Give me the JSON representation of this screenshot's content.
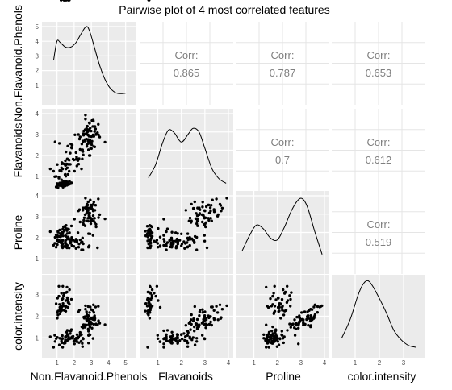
{
  "chart_data": {
    "type": "scatter",
    "title": "Pairwise plot of 4 most correlated features",
    "variables": [
      "Non.Flavanoid.Phenols",
      "Flavanoids",
      "Proline",
      "color.intensity"
    ],
    "axis_limits": [
      [
        0.5,
        5.3
      ],
      [
        0.5,
        4.0
      ],
      [
        0.5,
        4.0
      ],
      [
        0.3,
        3.7
      ]
    ],
    "axis_ticks": [
      [
        1,
        2,
        3,
        4,
        5
      ],
      [
        1,
        2,
        3,
        4
      ],
      [
        1,
        2,
        3,
        4
      ],
      [
        1,
        2,
        3
      ]
    ],
    "correlation_label": "Corr:",
    "correlations": [
      {
        "row": 0,
        "col": 1,
        "value": "0.865"
      },
      {
        "row": 0,
        "col": 2,
        "value": "0.787"
      },
      {
        "row": 0,
        "col": 3,
        "value": "0.653"
      },
      {
        "row": 1,
        "col": 2,
        "value": "0.7"
      },
      {
        "row": 1,
        "col": 3,
        "value": "0.612"
      },
      {
        "row": 2,
        "col": 3,
        "value": "0.519"
      }
    ],
    "density": [
      {
        "variable": "Non.Flavanoid.Phenols",
        "scale_max": 5,
        "y_ticks": [
          1,
          2,
          3,
          4,
          5
        ],
        "x": [
          0.8,
          1.0,
          1.2,
          1.5,
          1.8,
          2.1,
          2.4,
          2.7,
          2.9,
          3.2,
          3.5,
          3.8,
          4.1,
          4.5,
          5.0
        ],
        "y": [
          2.7,
          4.0,
          3.9,
          3.6,
          3.6,
          3.9,
          4.5,
          5.0,
          4.7,
          3.5,
          2.3,
          1.4,
          0.8,
          0.45,
          0.45
        ]
      },
      {
        "variable": "Flavanoids",
        "scale_max": 4,
        "y_ticks": [
          1,
          2,
          3,
          4
        ],
        "x": [
          0.6,
          0.9,
          1.2,
          1.45,
          1.7,
          2.0,
          2.3,
          2.5,
          2.75,
          3.0,
          3.3,
          3.6,
          3.9
        ],
        "y": [
          0.5,
          1.2,
          2.4,
          3.1,
          2.95,
          2.45,
          2.9,
          3.2,
          3.0,
          2.1,
          1.0,
          0.45,
          0.2
        ]
      },
      {
        "variable": "Proline",
        "scale_max": 4,
        "y_ticks": [
          1,
          2,
          3,
          4
        ],
        "x": [
          0.5,
          0.8,
          1.1,
          1.4,
          1.7,
          2.0,
          2.3,
          2.6,
          2.9,
          3.1,
          3.3,
          3.6,
          3.9
        ],
        "y": [
          1.0,
          1.8,
          2.4,
          2.2,
          1.7,
          1.6,
          2.3,
          3.2,
          3.8,
          3.8,
          3.3,
          2.0,
          0.8
        ]
      },
      {
        "variable": "color.intensity",
        "scale_max": 3.9,
        "y_ticks": [],
        "x": [
          0.45,
          0.8,
          1.1,
          1.3,
          1.5,
          1.7,
          2.0,
          2.3,
          2.6,
          2.9,
          3.2,
          3.5
        ],
        "y": [
          0.8,
          1.8,
          3.0,
          3.6,
          3.85,
          3.6,
          2.9,
          2.1,
          1.2,
          0.7,
          0.4,
          0.3
        ]
      }
    ],
    "points": {
      "Non.Flavanoid.Phenols": [
        2.72,
        2.64,
        2.76,
        3.41,
        2.64,
        3.09,
        3.02,
        2.74,
        2.8,
        3.19,
        2.94,
        2.74,
        2.83,
        3.11,
        3.12,
        3.15,
        2.79,
        2.77,
        2.66,
        2.59,
        2.56,
        3.2,
        3.49,
        2.96,
        2.99,
        2.82,
        3.11,
        2.51,
        2.55,
        3.01,
        2.89,
        2.91,
        2.53,
        2.92,
        3.42,
        3.04,
        3.14,
        3.8,
        2.52,
        2.72,
        2.86,
        2.88,
        2.86,
        3.27,
        2.97,
        2.99,
        3.21,
        2.87,
        2.9,
        3.25,
        2.81,
        2.66,
        2.31,
        3.01,
        2.72,
        2.25,
        2.64,
        3.04,
        2.82,
        1.33,
        1.26,
        1.98,
        1.49,
        0.89,
        1.71,
        2.45,
        1.14,
        1.81,
        3.28,
        3.1,
        1.6,
        2.47,
        1.6,
        2.84,
        2.02,
        0.61,
        1.52,
        2.17,
        1.62,
        1.63,
        1.52,
        2.35,
        2.49,
        2.53,
        1.87,
        1.49,
        1.33,
        2.22,
        0.87,
        1.89,
        1.67,
        2.84,
        0.95,
        1.28,
        2.29,
        1.86,
        1.16,
        2.35,
        1.84,
        1.56,
        2.11,
        2.16,
        1.78,
        2.14,
        2.43,
        0.8,
        2.26,
        2.11,
        1.77,
        2.14,
        1.02,
        1.31,
        1.6,
        2.41,
        1.49,
        2.51,
        1.74,
        1.71,
        2.88,
        1.48,
        1.94,
        1.25,
        2.84,
        2.93,
        1.41,
        1.28,
        1.51,
        3.36,
        2.05,
        1.47,
        1.5,
        1.33,
        1.52,
        1.21,
        1.02,
        1.17,
        1.51,
        0.95,
        1.22,
        1.17,
        1.06,
        1.06,
        1.43,
        1.3,
        1.24,
        1.01,
        1.15,
        1.27,
        1.03,
        1.58,
        1.11,
        1.29,
        1.26,
        1.11,
        1.35,
        1.6,
        1.51,
        1.65,
        1.62,
        1.16,
        1.34,
        1.42,
        1.33,
        1.73,
        1.38,
        1.68,
        1.34,
        1.47,
        1.29,
        1.58,
        1.53,
        1.84,
        1.72,
        1.65,
        1.69,
        1.24,
        1.53,
        1.41
      ],
      "Flavanoids": [
        3.06,
        2.76,
        3.24,
        3.49,
        2.69,
        3.39,
        2.52,
        2.51,
        2.98,
        3.15,
        3.32,
        2.43,
        2.76,
        3.69,
        3.64,
        2.91,
        3.14,
        3.4,
        3.93,
        3.03,
        3.17,
        2.41,
        2.88,
        2.37,
        2.61,
        2.68,
        2.94,
        2.19,
        2.97,
        2.33,
        3.25,
        3.19,
        2.69,
        2.74,
        2.98,
        2.68,
        2.43,
        2.64,
        3.04,
        3.29,
        2.68,
        3.56,
        2.63,
        3.0,
        2.65,
        3.17,
        3.39,
        2.92,
        3.54,
        3.27,
        2.99,
        3.74,
        2.79,
        2.9,
        2.78,
        3.0,
        3.23,
        3.67,
        2.57,
        0.57,
        1.41,
        1.79,
        1.75,
        2.65,
        1.25,
        2.55,
        2.58,
        2.55,
        3.03,
        2.98,
        1.41,
        1.84,
        1.84,
        2.27,
        1.25,
        1.36,
        1.36,
        1.85,
        1.82,
        2.45,
        2.17,
        2.29,
        2.27,
        2.03,
        2.36,
        1.53,
        1.36,
        1.76,
        0.99,
        2.5,
        1.58,
        2.27,
        1.0,
        1.66,
        1.85,
        2.36,
        1.28,
        2.89,
        2.39,
        1.6,
        2.14,
        1.5,
        1.58,
        1.93,
        1.36,
        1.25,
        1.59,
        1.81,
        2.11,
        1.85,
        1.57,
        1.64,
        1.59,
        2.24,
        1.1,
        2.65,
        1.58,
        1.78,
        2.0,
        1.57,
        1.83,
        1.25,
        2.26,
        2.0,
        1.6,
        1.6,
        1.54,
        3.09,
        2.99,
        1.09,
        0.7,
        0.69,
        0.76,
        0.58,
        0.65,
        0.57,
        0.63,
        0.5,
        0.58,
        0.66,
        0.47,
        0.6,
        0.61,
        0.66,
        0.7,
        0.66,
        0.68,
        0.7,
        0.58,
        0.68,
        0.92,
        0.66,
        0.84,
        0.96,
        0.49,
        0.74,
        1.01,
        1.1,
        0.7,
        0.68,
        0.61,
        0.69,
        0.68,
        0.76,
        0.75,
        0.63,
        0.66,
        0.55,
        0.56,
        0.58,
        0.65,
        0.7,
        0.63,
        0.61
      ],
      "Proline": [
        3.48,
        3.1,
        3.27,
        3.85,
        2.57,
        3.35,
        3.4,
        3.4,
        2.93,
        2.93,
        3.8,
        3.6,
        3.42,
        3.28,
        3.6,
        3.7,
        3.56,
        3.24,
        3.89,
        2.95,
        2.83,
        2.73,
        3.1,
        2.94,
        2.91,
        2.79,
        3.05,
        3.31,
        2.63,
        2.8,
        2.93,
        3.18,
        3.42,
        3.41,
        2.96,
        2.89,
        2.8,
        2.9,
        2.72,
        2.8,
        3.05,
        3.1,
        3.16,
        2.64,
        2.67,
        3.56,
        3.31,
        3.1,
        3.03,
        3.55,
        3.3,
        3.41,
        3.34,
        3.47,
        3.16,
        3.28,
        3.43,
        3.54,
        3.71,
        1.52,
        1.77,
        1.59,
        1.84,
        2.02,
        1.93,
        1.8,
        2.06,
        1.76,
        2.52,
        2.11,
        2.42,
        1.79,
        2.2,
        2.19,
        2.89,
        2.29,
        1.61,
        1.79,
        1.94,
        1.95,
        1.73,
        1.9,
        1.99,
        1.71,
        1.63,
        1.56,
        1.7,
        2.24,
        1.73,
        1.88,
        1.99,
        1.57,
        1.55,
        1.71,
        1.7,
        2.01,
        1.83,
        2.75,
        1.93,
        1.65,
        1.49,
        1.87,
        1.74,
        1.88,
        1.42,
        1.64,
        1.55,
        1.93,
        1.81,
        1.87,
        1.67,
        1.83,
        1.63,
        1.77,
        1.62,
        1.42,
        1.91,
        1.51,
        1.62,
        1.76,
        1.89,
        2.11,
        1.55,
        2.18,
        1.58,
        2.26,
        1.9,
        1.52,
        1.84,
        1.58,
        2.09,
        1.89,
        2.07,
        2.05,
        2.14,
        1.85,
        1.89,
        2.13,
        2.08,
        2.2,
        2.31,
        2.27,
        2.36,
        2.21,
        1.75,
        1.86,
        1.8,
        1.62,
        2.04,
        1.52,
        1.8,
        1.57,
        1.84,
        1.88,
        2.09,
        2.03,
        2.44,
        2.03,
        1.94,
        2.37,
        1.7,
        2.31,
        2.22,
        2.24,
        2.52,
        2.4,
        2.41,
        2.55,
        2.2,
        2.34,
        2.59,
        2.56
      ],
      "color.intensity": [
        1.84,
        1.6,
        1.99,
        2.46,
        1.49,
        2.27,
        1.88,
        1.78,
        1.94,
        2.02,
        2.43,
        2.07,
        2.03,
        1.94,
        2.53,
        2.18,
        1.99,
        1.85,
        2.49,
        1.91,
        1.96,
        1.84,
        1.68,
        1.74,
        1.66,
        1.41,
        1.85,
        1.58,
        1.61,
        1.67,
        1.74,
        1.63,
        1.57,
        1.51,
        1.79,
        1.45,
        1.63,
        1.61,
        1.47,
        1.59,
        1.85,
        1.84,
        1.63,
        1.63,
        1.64,
        1.93,
        1.9,
        1.73,
        2.17,
        2.43,
        2.03,
        2.33,
        2.29,
        2.31,
        2.21,
        2.21,
        1.98,
        1.9,
        2.45,
        0.56,
        0.85,
        0.84,
        0.9,
        0.83,
        1.33,
        1.51,
        0.67,
        1.32,
        1.64,
        0.97,
        1.35,
        0.74,
        1.12,
        1.31,
        0.72,
        1.05,
        0.87,
        1.15,
        1.16,
        0.91,
        1.06,
        1.25,
        0.59,
        0.95,
        1.04,
        1.05,
        0.97,
        0.98,
        1.12,
        1.01,
        1.06,
        0.76,
        0.96,
        0.94,
        0.78,
        0.98,
        0.98,
        1.12,
        1.38,
        1.26,
        0.88,
        0.82,
        0.98,
        0.87,
        1.15,
        0.56,
        1.04,
        0.98,
        1.2,
        0.99,
        1.02,
        1.1,
        0.88,
        0.84,
        0.82,
        0.98,
        0.95,
        0.96,
        1.16,
        0.76,
        1.07,
        0.95,
        1.11,
        1.14,
        0.75,
        0.77,
        0.88,
        1.6,
        0.95,
        0.82,
        2.42,
        2.47,
        2.48,
        2.22,
        1.91,
        2.12,
        2.23,
        2.58,
        2.25,
        2.41,
        2.24,
        2.06,
        2.27,
        2.28,
        2.47,
        2.17,
        2.55,
        2.41,
        2.84,
        3.35,
        2.93,
        2.47,
        3.07,
        3.39,
        2.59,
        2.86,
        2.73,
        2.41,
        2.77,
        2.29,
        2.82,
        3.06,
        2.47,
        3.23,
        2.96,
        2.64,
        3.39,
        2.47,
        2.78,
        3.12,
        3.1,
        2.79,
        2.56,
        2.64
      ]
    }
  }
}
